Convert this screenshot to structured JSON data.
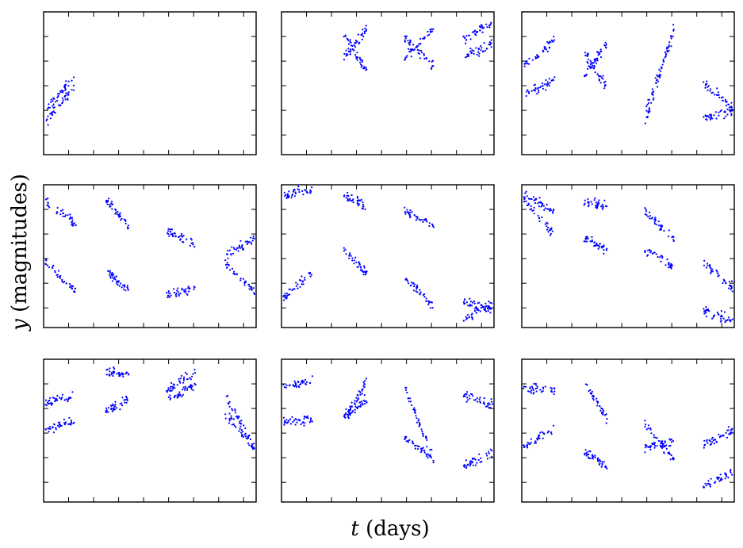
{
  "figure": {
    "xlabel": {
      "var": "t",
      "unit": " (days)"
    },
    "ylabel": {
      "var": "y",
      "unit": " (magnitudes)"
    },
    "point_color": "#0000ff"
  },
  "chart_data": {
    "type": "scatter",
    "layout": {
      "rows": 3,
      "cols": 3
    },
    "xlabel": "t (days)",
    "ylabel": "y (magnitudes)",
    "tick_labels_visible": false,
    "grid": false,
    "legend": "none",
    "panels": [
      {
        "id": "r1c1",
        "ylim": [
          0,
          1
        ],
        "segments": [
          {
            "t": [
              0.0,
              0.14
            ],
            "tracks": [
              [
                0.3,
                0.55
              ],
              [
                0.22,
                0.48
              ]
            ]
          }
        ]
      },
      {
        "id": "r1c2",
        "ylim": [
          0,
          1
        ],
        "segments": [
          {
            "t": [
              0.29,
              0.4
            ],
            "tracks": [
              [
                0.68,
                0.88
              ],
              [
                0.85,
                0.58
              ]
            ]
          },
          {
            "t": [
              0.58,
              0.72
            ],
            "tracks": [
              [
                0.68,
                0.88
              ],
              [
                0.83,
                0.62
              ]
            ]
          },
          {
            "t": [
              0.86,
              1.0
            ],
            "tracks": [
              [
                0.8,
                0.93
              ],
              [
                0.68,
                0.78
              ]
            ]
          }
        ]
      },
      {
        "id": "r1c3",
        "ylim": [
          0,
          1
        ],
        "segments": [
          {
            "t": [
              0.0,
              0.15
            ],
            "tracks": [
              [
                0.63,
                0.8
              ],
              [
                0.42,
                0.52
              ]
            ]
          },
          {
            "t": [
              0.29,
              0.4
            ],
            "tracks": [
              [
                0.72,
                0.47
              ],
              [
                0.55,
                0.78
              ]
            ]
          },
          {
            "t": [
              0.58,
              0.72
            ],
            "tracks": [
              [
                0.2,
                0.9
              ],
              [
                0.3,
                0.85
              ]
            ]
          },
          {
            "t": [
              0.86,
              1.0
            ],
            "tracks": [
              [
                0.5,
                0.33
              ],
              [
                0.25,
                0.3
              ]
            ]
          }
        ]
      },
      {
        "id": "r2c1",
        "ylim": [
          0,
          1
        ],
        "segments": [
          {
            "t": [
              0.0,
              0.15
            ],
            "tracks": [
              [
                0.88,
                0.72
              ],
              [
                0.45,
                0.25
              ]
            ]
          },
          {
            "t": [
              0.29,
              0.4
            ],
            "tracks": [
              [
                0.9,
                0.7
              ],
              [
                0.4,
                0.25
              ]
            ]
          },
          {
            "t": [
              0.58,
              0.72
            ],
            "tracks": [
              [
                0.68,
                0.58
              ],
              [
                0.22,
                0.28
              ]
            ]
          },
          {
            "t": [
              0.86,
              1.0
            ],
            "tracks": [
              [
                0.5,
                0.62
              ],
              [
                0.45,
                0.25
              ]
            ]
          }
        ]
      },
      {
        "id": "r2c2",
        "ylim": [
          0,
          1
        ],
        "segments": [
          {
            "t": [
              0.0,
              0.14
            ],
            "tracks": [
              [
                0.92,
                0.97
              ],
              [
                0.22,
                0.38
              ]
            ]
          },
          {
            "t": [
              0.29,
              0.4
            ],
            "tracks": [
              [
                0.92,
                0.85
              ],
              [
                0.55,
                0.38
              ]
            ]
          },
          {
            "t": [
              0.58,
              0.72
            ],
            "tracks": [
              [
                0.82,
                0.72
              ],
              [
                0.35,
                0.15
              ]
            ]
          },
          {
            "t": [
              0.86,
              1.0
            ],
            "tracks": [
              [
                0.18,
                0.12
              ],
              [
                0.05,
                0.18
              ]
            ]
          }
        ]
      },
      {
        "id": "r2c3",
        "ylim": [
          0,
          1
        ],
        "segments": [
          {
            "t": [
              0.0,
              0.15
            ],
            "tracks": [
              [
                0.95,
                0.8
              ],
              [
                0.9,
                0.65
              ]
            ]
          },
          {
            "t": [
              0.29,
              0.4
            ],
            "tracks": [
              [
                0.88,
                0.85
              ],
              [
                0.62,
                0.55
              ]
            ]
          },
          {
            "t": [
              0.58,
              0.72
            ],
            "tracks": [
              [
                0.82,
                0.62
              ],
              [
                0.55,
                0.42
              ]
            ]
          },
          {
            "t": [
              0.86,
              1.0
            ],
            "tracks": [
              [
                0.45,
                0.28
              ],
              [
                0.12,
                0.05
              ]
            ]
          }
        ]
      },
      {
        "id": "r3c1",
        "ylim": [
          0,
          1
        ],
        "segments": [
          {
            "t": [
              0.0,
              0.14
            ],
            "tracks": [
              [
                0.68,
                0.75
              ],
              [
                0.5,
                0.58
              ]
            ]
          },
          {
            "t": [
              0.29,
              0.4
            ],
            "tracks": [
              [
                0.92,
                0.88
              ],
              [
                0.65,
                0.72
              ]
            ]
          },
          {
            "t": [
              0.58,
              0.72
            ],
            "tracks": [
              [
                0.78,
                0.92
              ],
              [
                0.72,
                0.82
              ]
            ]
          },
          {
            "t": [
              0.86,
              1.0
            ],
            "tracks": [
              [
                0.75,
                0.38
              ],
              [
                0.62,
                0.38
              ]
            ]
          }
        ]
      },
      {
        "id": "r3c2",
        "ylim": [
          0,
          1
        ],
        "segments": [
          {
            "t": [
              0.0,
              0.14
            ],
            "tracks": [
              [
                0.8,
                0.85
              ],
              [
                0.55,
                0.58
              ]
            ]
          },
          {
            "t": [
              0.29,
              0.4
            ],
            "tracks": [
              [
                0.55,
                0.85
              ],
              [
                0.6,
                0.72
              ]
            ]
          },
          {
            "t": [
              0.58,
              0.72
            ],
            "tracks": [
              [
                0.8,
                0.3
              ],
              [
                0.45,
                0.3
              ]
            ]
          },
          {
            "t": [
              0.86,
              1.0
            ],
            "tracks": [
              [
                0.75,
                0.68
              ],
              [
                0.25,
                0.35
              ]
            ]
          }
        ]
      },
      {
        "id": "r3c3",
        "ylim": [
          0,
          1
        ],
        "segments": [
          {
            "t": [
              0.0,
              0.15
            ],
            "tracks": [
              [
                0.8,
                0.78
              ],
              [
                0.38,
                0.52
              ]
            ]
          },
          {
            "t": [
              0.29,
              0.4
            ],
            "tracks": [
              [
                0.85,
                0.58
              ],
              [
                0.35,
                0.25
              ]
            ]
          },
          {
            "t": [
              0.58,
              0.72
            ],
            "tracks": [
              [
                0.55,
                0.3
              ],
              [
                0.38,
                0.42
              ]
            ]
          },
          {
            "t": [
              0.86,
              1.0
            ],
            "tracks": [
              [
                0.4,
                0.5
              ],
              [
                0.1,
                0.22
              ]
            ]
          }
        ]
      }
    ]
  }
}
